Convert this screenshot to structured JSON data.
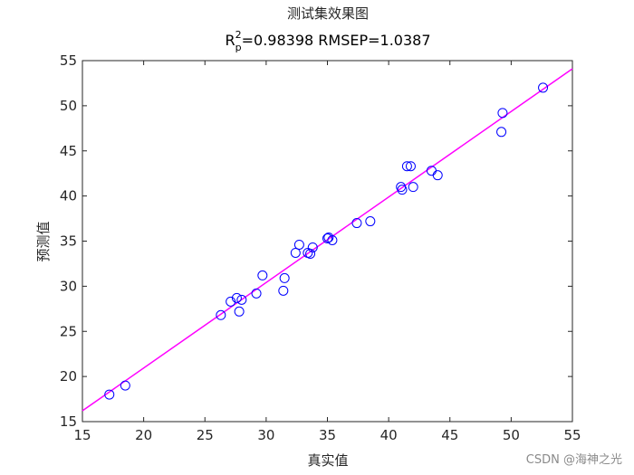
{
  "chart_data": {
    "type": "scatter",
    "title": "测试集效果图",
    "subtitle": {
      "r": "R",
      "sup": "2",
      "sub": "p",
      "rest": "=0.98398  RMSEP=1.0387"
    },
    "xlabel": "真实值",
    "ylabel": "预测值",
    "xlim": [
      15,
      55
    ],
    "ylim": [
      15,
      55
    ],
    "x_ticks": [
      15,
      20,
      25,
      30,
      35,
      40,
      45,
      50,
      55
    ],
    "y_ticks": [
      15,
      20,
      25,
      30,
      35,
      40,
      45,
      50,
      55
    ],
    "grid": false,
    "marker": "open-circle",
    "marker_color": "#0000ff",
    "fit_line_color": "#ff00ff",
    "axis_color": "#262626",
    "fit_line": {
      "x": [
        15,
        55
      ],
      "y": [
        16.2,
        54.1
      ]
    },
    "points": [
      {
        "x": 17.2,
        "y": 18.0
      },
      {
        "x": 18.5,
        "y": 19.0
      },
      {
        "x": 26.3,
        "y": 26.8
      },
      {
        "x": 27.1,
        "y": 28.3
      },
      {
        "x": 27.6,
        "y": 28.7
      },
      {
        "x": 27.8,
        "y": 27.2
      },
      {
        "x": 28.0,
        "y": 28.5
      },
      {
        "x": 29.2,
        "y": 29.2
      },
      {
        "x": 29.7,
        "y": 31.2
      },
      {
        "x": 31.4,
        "y": 29.5
      },
      {
        "x": 31.5,
        "y": 30.9
      },
      {
        "x": 32.4,
        "y": 33.7
      },
      {
        "x": 32.7,
        "y": 34.6
      },
      {
        "x": 33.4,
        "y": 33.7
      },
      {
        "x": 33.6,
        "y": 33.6
      },
      {
        "x": 33.8,
        "y": 34.3
      },
      {
        "x": 35.0,
        "y": 35.3
      },
      {
        "x": 35.1,
        "y": 35.4
      },
      {
        "x": 35.4,
        "y": 35.1
      },
      {
        "x": 37.4,
        "y": 37.0
      },
      {
        "x": 38.5,
        "y": 37.2
      },
      {
        "x": 41.0,
        "y": 41.0
      },
      {
        "x": 41.1,
        "y": 40.7
      },
      {
        "x": 41.5,
        "y": 43.3
      },
      {
        "x": 41.8,
        "y": 43.3
      },
      {
        "x": 42.0,
        "y": 41.0
      },
      {
        "x": 43.5,
        "y": 42.8
      },
      {
        "x": 44.0,
        "y": 42.3
      },
      {
        "x": 49.2,
        "y": 47.1
      },
      {
        "x": 49.3,
        "y": 49.2
      },
      {
        "x": 52.6,
        "y": 52.0
      }
    ]
  },
  "watermark": "CSDN @海神之光"
}
